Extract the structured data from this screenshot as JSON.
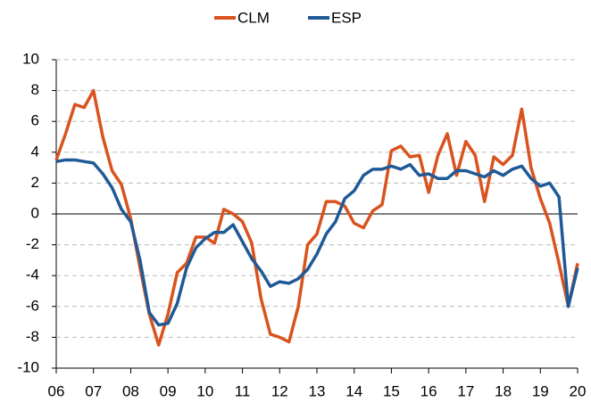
{
  "chart_data": {
    "type": "line",
    "categories": [
      "06",
      null,
      null,
      null,
      "07",
      null,
      null,
      null,
      "08",
      null,
      null,
      null,
      "09",
      null,
      null,
      null,
      "10",
      null,
      null,
      null,
      "11",
      null,
      null,
      null,
      "12",
      null,
      null,
      null,
      "13",
      null,
      null,
      null,
      "14",
      null,
      null,
      null,
      "15",
      null,
      null,
      null,
      "16",
      null,
      null,
      null,
      "17",
      null,
      null,
      null,
      "18",
      null,
      null,
      null,
      "19",
      null,
      null,
      null,
      "20"
    ],
    "series": [
      {
        "name": "CLM",
        "color": "#d9531e",
        "values": [
          3.5,
          5.2,
          7.1,
          6.9,
          8.0,
          5.0,
          2.8,
          1.9,
          -0.3,
          -3.5,
          -6.5,
          -8.5,
          -6.5,
          -3.8,
          -3.2,
          -1.5,
          -1.5,
          -1.9,
          0.3,
          0.0,
          -0.5,
          -1.9,
          -5.5,
          -7.8,
          -8.0,
          -8.3,
          -6.0,
          -2.0,
          -1.3,
          0.8,
          0.8,
          0.5,
          -0.6,
          -0.9,
          0.2,
          0.6,
          4.1,
          4.4,
          3.7,
          3.8,
          1.4,
          3.8,
          5.2,
          2.5,
          4.7,
          3.8,
          0.8,
          3.7,
          3.2,
          3.8,
          6.8,
          3.0,
          1.0,
          -0.6,
          -3.2,
          -6.0,
          -3.2
        ]
      },
      {
        "name": "ESP",
        "color": "#1f5a96",
        "values": [
          3.4,
          3.5,
          3.5,
          3.4,
          3.3,
          2.6,
          1.7,
          0.3,
          -0.5,
          -3.0,
          -6.4,
          -7.2,
          -7.1,
          -5.8,
          -3.5,
          -2.2,
          -1.6,
          -1.2,
          -1.2,
          -0.7,
          -1.8,
          -2.9,
          -3.7,
          -4.7,
          -4.4,
          -4.5,
          -4.2,
          -3.6,
          -2.6,
          -1.3,
          -0.5,
          1.0,
          1.5,
          2.5,
          2.9,
          2.9,
          3.1,
          2.9,
          3.2,
          2.5,
          2.6,
          2.3,
          2.3,
          2.8,
          2.8,
          2.6,
          2.4,
          2.8,
          2.5,
          2.9,
          3.1,
          2.3,
          1.8,
          2.0,
          1.1,
          -6.0,
          -3.5
        ]
      }
    ],
    "ylim": [
      -10,
      10
    ],
    "yticks": [
      -10,
      -8,
      -6,
      -4,
      -2,
      0,
      2,
      4,
      6,
      8,
      10
    ],
    "grid": true,
    "legend": "top"
  }
}
